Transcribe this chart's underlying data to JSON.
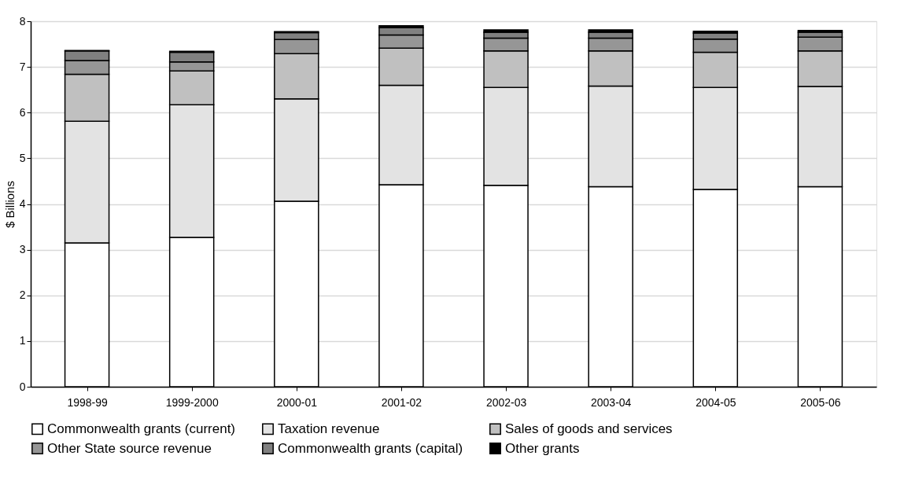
{
  "chart_data": {
    "type": "bar",
    "stacked": true,
    "ylabel": "$ Billions",
    "categories": [
      "1998-99",
      "1999-2000",
      "2000-01",
      "2001-02",
      "2002-03",
      "2003-04",
      "2004-05",
      "2005-06"
    ],
    "series": [
      {
        "name": "Commonwealth grants (current)",
        "color": "#ffffff",
        "values": [
          3.15,
          3.27,
          4.06,
          4.42,
          4.41,
          4.38,
          4.32,
          4.38
        ]
      },
      {
        "name": "Taxation revenue",
        "color": "#e3e3e3",
        "values": [
          2.66,
          2.9,
          2.24,
          2.18,
          2.14,
          2.2,
          2.23,
          2.19
        ]
      },
      {
        "name": "Sales of goods and services",
        "color": "#c0c0c0",
        "values": [
          1.03,
          0.74,
          0.99,
          0.81,
          0.8,
          0.77,
          0.77,
          0.78
        ]
      },
      {
        "name": "Other State source revenue",
        "color": "#969696",
        "values": [
          0.3,
          0.2,
          0.31,
          0.29,
          0.28,
          0.28,
          0.29,
          0.3
        ]
      },
      {
        "name": "Commonwealth grants (capital)",
        "color": "#808080",
        "values": [
          0.21,
          0.21,
          0.15,
          0.16,
          0.13,
          0.13,
          0.13,
          0.11
        ]
      },
      {
        "name": "Other grants",
        "color": "#000000",
        "values": [
          0.01,
          0.02,
          0.02,
          0.04,
          0.05,
          0.05,
          0.04,
          0.04
        ]
      }
    ],
    "ylim": [
      0,
      8
    ],
    "yticks": [
      0,
      1,
      2,
      3,
      4,
      5,
      6,
      7,
      8
    ],
    "grid": "y",
    "legend": "bottom"
  }
}
